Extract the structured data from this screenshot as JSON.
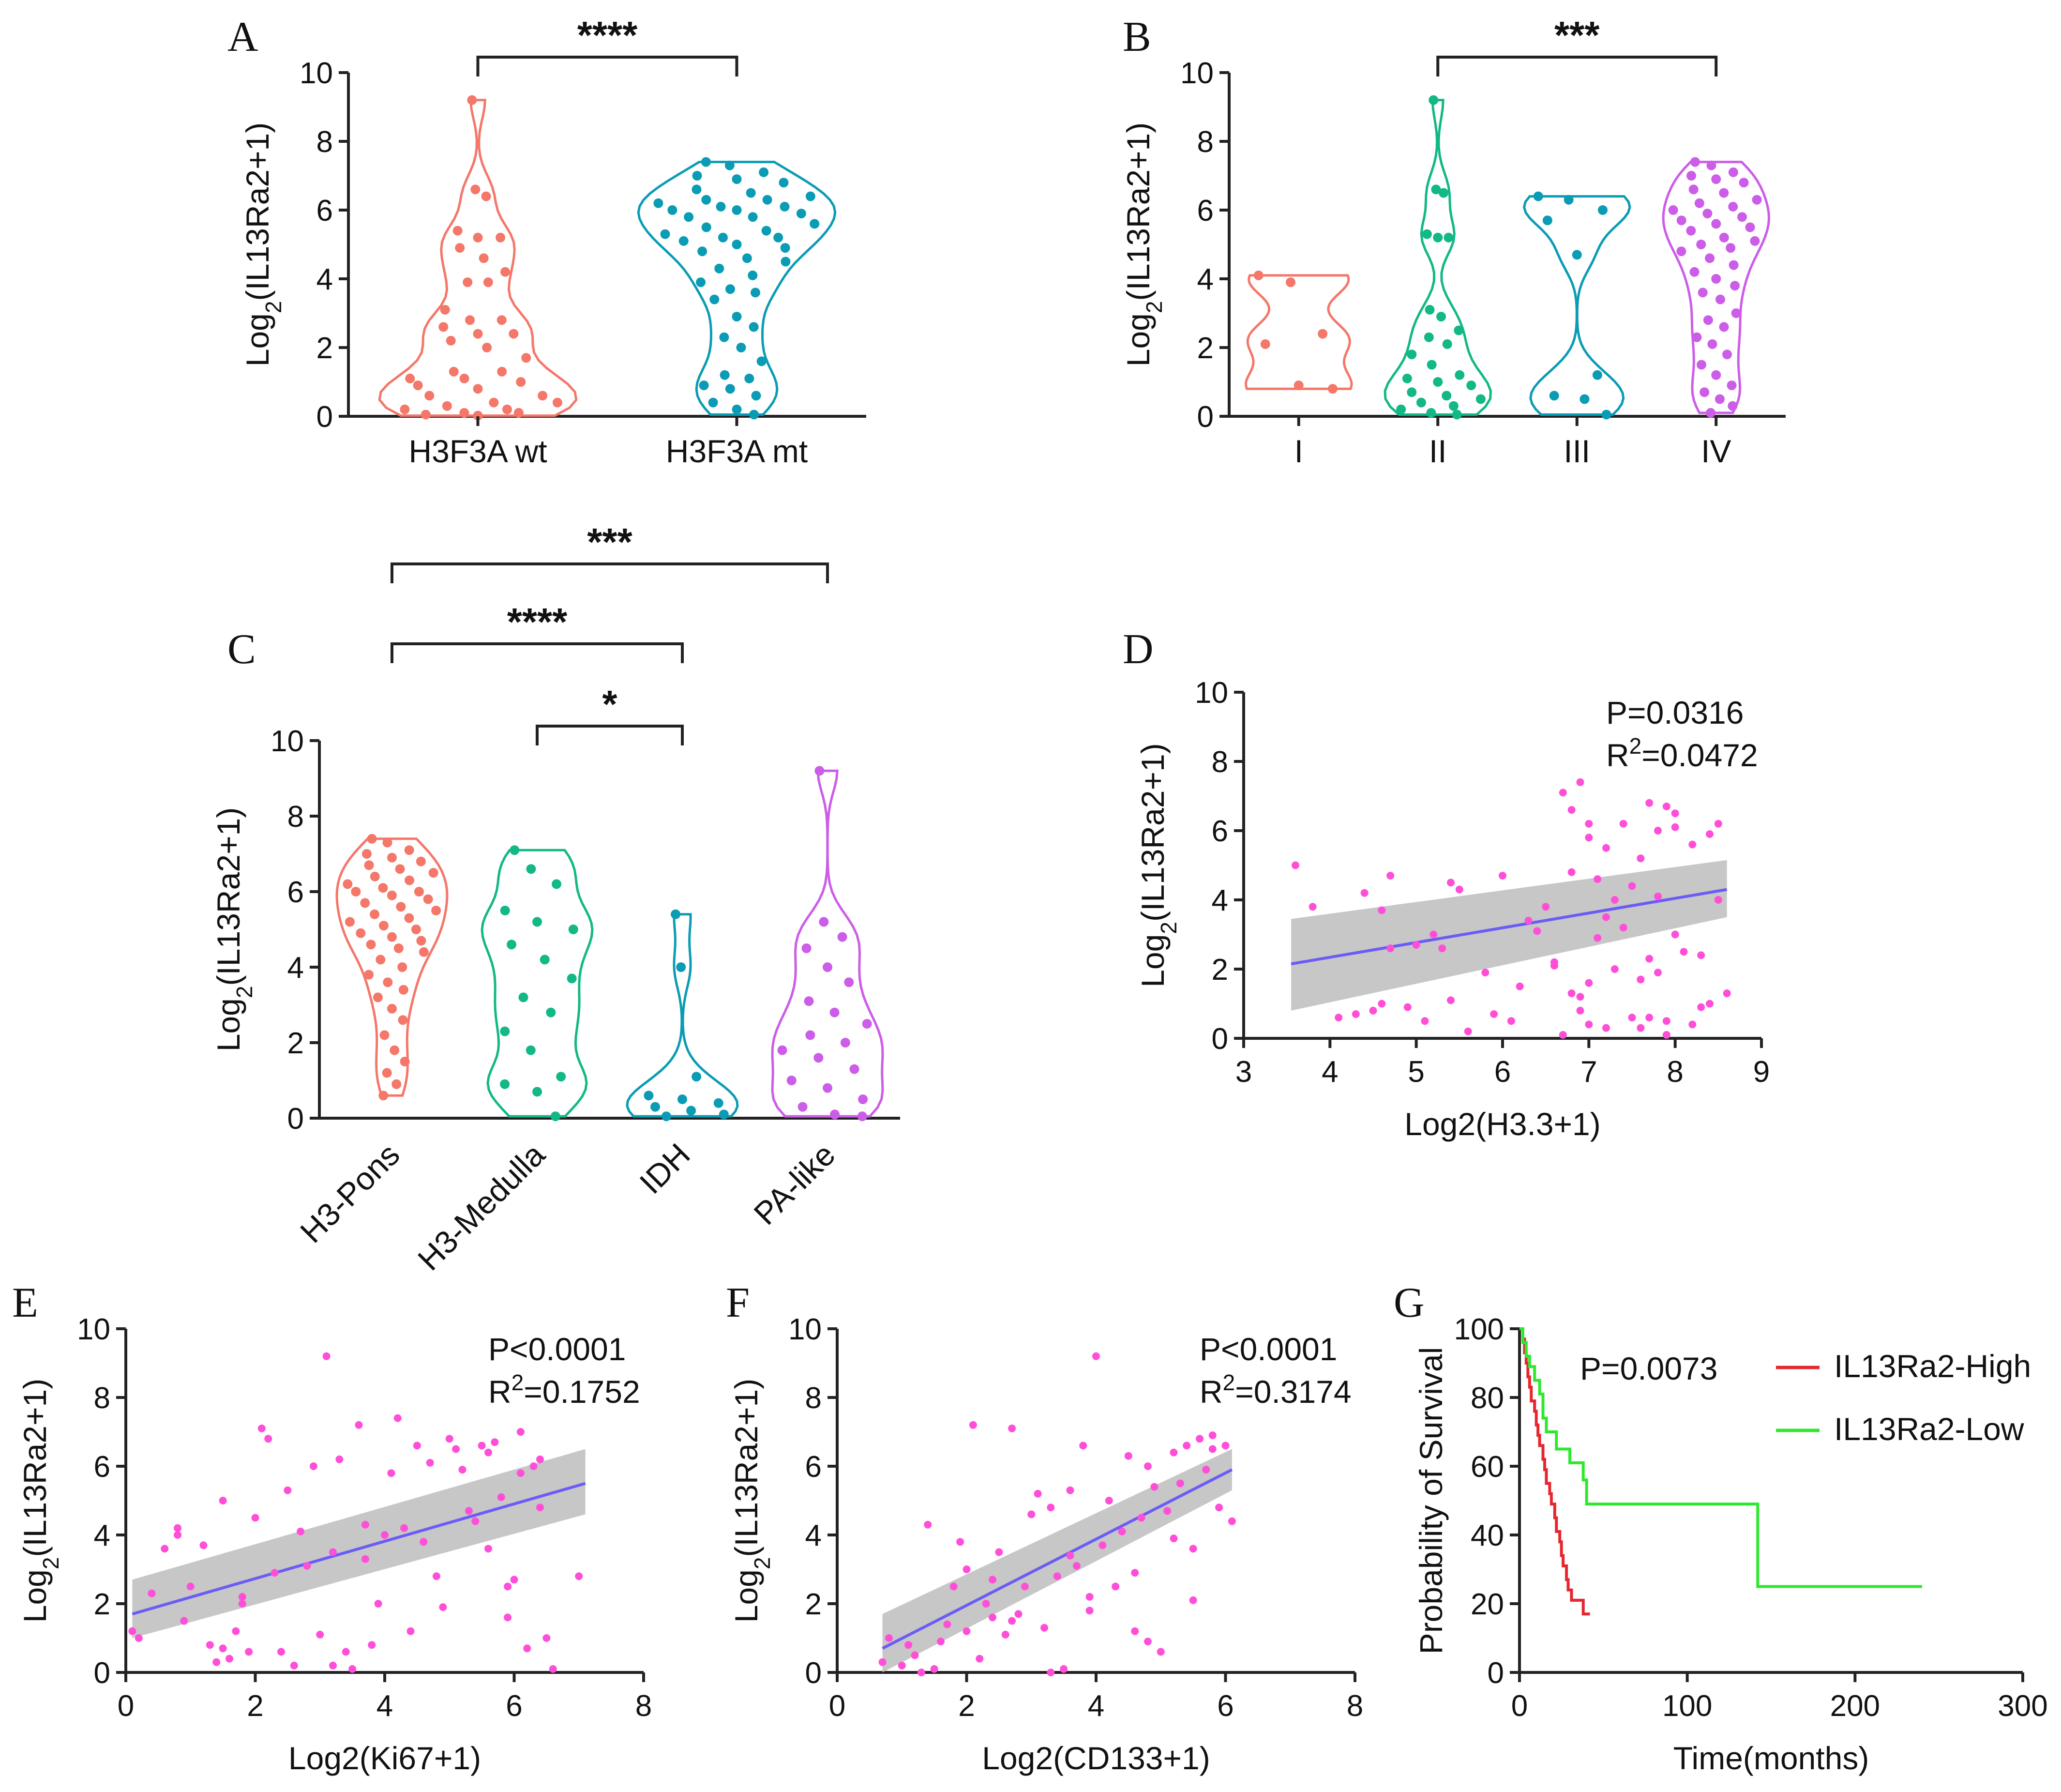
{
  "chart_data": [
    {
      "panel": "A",
      "type": "violin",
      "ylabel": "Log2(IL13Ra2+1)",
      "ylim": [
        0,
        10
      ],
      "yticks": [
        0,
        2,
        4,
        6,
        8,
        10
      ],
      "categories": [
        "H3F3A wt",
        "H3F3A mt"
      ],
      "colors": [
        "#f4776a",
        "#0a9cb4"
      ],
      "groups": [
        {
          "name": "H3F3A wt",
          "points": [
            9.2,
            6.6,
            6.4,
            5.4,
            5.2,
            5.2,
            4.9,
            4.6,
            4.2,
            3.9,
            3.9,
            3.1,
            2.8,
            2.8,
            2.6,
            2.4,
            2.4,
            2.2,
            2.0,
            1.7,
            1.3,
            1.3,
            1.1,
            1.1,
            1.0,
            0.9,
            0.8,
            0.6,
            0.6,
            0.4,
            0.4,
            0.3,
            0.2,
            0.2,
            0.1,
            0.1,
            0.05,
            0.02
          ]
        },
        {
          "name": "H3F3A mt",
          "points": [
            7.4,
            7.3,
            7.1,
            7.0,
            6.9,
            6.8,
            6.6,
            6.5,
            6.4,
            6.3,
            6.3,
            6.2,
            6.1,
            6.1,
            6.0,
            6.0,
            5.9,
            5.8,
            5.8,
            5.6,
            5.5,
            5.4,
            5.3,
            5.2,
            5.2,
            5.1,
            5.0,
            4.9,
            4.8,
            4.6,
            4.5,
            4.3,
            4.1,
            3.9,
            3.7,
            3.6,
            3.4,
            2.9,
            2.6,
            2.3,
            2.0,
            1.6,
            1.2,
            1.1,
            0.9,
            0.8,
            0.6,
            0.4,
            0.2,
            0.05
          ]
        }
      ],
      "comparisons": [
        {
          "from": "H3F3A wt",
          "to": "H3F3A mt",
          "label": "****"
        }
      ]
    },
    {
      "panel": "B",
      "type": "violin",
      "ylabel": "Log2(IL13Ra2+1)",
      "ylim": [
        0,
        10
      ],
      "yticks": [
        0,
        2,
        4,
        6,
        8,
        10
      ],
      "categories": [
        "I",
        "II",
        "III",
        "IV"
      ],
      "colors": [
        "#f4776a",
        "#12b886",
        "#0a9cb4",
        "#cc5de8"
      ],
      "groups": [
        {
          "name": "I",
          "points": [
            4.1,
            3.9,
            2.4,
            2.1,
            0.9,
            0.8
          ]
        },
        {
          "name": "II",
          "points": [
            9.2,
            6.6,
            6.5,
            5.3,
            5.2,
            5.2,
            3.1,
            2.9,
            2.5,
            2.3,
            2.1,
            1.8,
            1.5,
            1.2,
            1.1,
            1.0,
            0.9,
            0.7,
            0.6,
            0.5,
            0.4,
            0.3,
            0.2,
            0.1,
            0.05
          ]
        },
        {
          "name": "III",
          "points": [
            6.4,
            6.3,
            6.0,
            5.7,
            4.7,
            1.2,
            0.6,
            0.5,
            0.05
          ]
        },
        {
          "name": "IV",
          "points": [
            7.4,
            7.3,
            7.1,
            7.0,
            6.9,
            6.8,
            6.6,
            6.5,
            6.3,
            6.2,
            6.1,
            6.0,
            5.9,
            5.8,
            5.7,
            5.6,
            5.5,
            5.4,
            5.2,
            5.1,
            5.0,
            4.9,
            4.8,
            4.6,
            4.4,
            4.2,
            4.0,
            3.8,
            3.6,
            3.4,
            3.0,
            2.8,
            2.6,
            2.3,
            2.1,
            1.8,
            1.5,
            1.2,
            0.9,
            0.7,
            0.5,
            0.3,
            0.1
          ]
        }
      ],
      "comparisons": [
        {
          "from": "II",
          "to": "IV",
          "label": "***"
        }
      ]
    },
    {
      "panel": "C",
      "type": "violin",
      "ylabel": "Log2(IL13Ra2+1)",
      "ylim": [
        0,
        10
      ],
      "yticks": [
        0,
        2,
        4,
        6,
        8,
        10
      ],
      "categories": [
        "H3-Pons",
        "H3-Medulla",
        "IDH",
        "PA-like"
      ],
      "colors": [
        "#f4776a",
        "#12b886",
        "#0a9cb4",
        "#cc5de8"
      ],
      "groups": [
        {
          "name": "H3-Pons",
          "points": [
            7.4,
            7.3,
            7.1,
            7.0,
            6.9,
            6.8,
            6.7,
            6.6,
            6.5,
            6.4,
            6.3,
            6.2,
            6.1,
            6.0,
            6.0,
            5.9,
            5.8,
            5.7,
            5.6,
            5.5,
            5.4,
            5.3,
            5.2,
            5.1,
            5.0,
            4.9,
            4.8,
            4.7,
            4.6,
            4.5,
            4.4,
            4.2,
            4.0,
            3.8,
            3.6,
            3.4,
            3.2,
            2.9,
            2.6,
            2.2,
            1.8,
            1.5,
            1.2,
            0.9,
            0.6
          ]
        },
        {
          "name": "H3-Medulla",
          "points": [
            7.1,
            6.6,
            6.2,
            5.5,
            5.2,
            5.0,
            4.6,
            4.2,
            3.7,
            3.2,
            2.8,
            2.3,
            1.8,
            1.1,
            0.9,
            0.7,
            0.05
          ]
        },
        {
          "name": "IDH",
          "points": [
            5.4,
            4.0,
            1.1,
            0.6,
            0.5,
            0.4,
            0.3,
            0.2,
            0.1,
            0.05
          ]
        },
        {
          "name": "PA-like",
          "points": [
            9.2,
            5.2,
            4.8,
            4.5,
            4.0,
            3.6,
            3.1,
            2.8,
            2.5,
            2.2,
            2.0,
            1.8,
            1.6,
            1.3,
            1.0,
            0.8,
            0.5,
            0.3,
            0.1,
            0.05
          ]
        }
      ],
      "comparisons": [
        {
          "from": "H3-Pons",
          "to": "PA-like",
          "label": "***"
        },
        {
          "from": "H3-Pons",
          "to": "IDH",
          "label": "****"
        },
        {
          "from": "H3-Medulla",
          "to": "IDH",
          "label": "*"
        }
      ]
    },
    {
      "panel": "D",
      "type": "scatter",
      "xlabel": "Log2(H3.3+1)",
      "ylabel": "Log2(IL13Ra2+1)",
      "xlim": [
        3,
        9
      ],
      "ylim": [
        0,
        10
      ],
      "xticks": [
        3,
        4,
        5,
        6,
        7,
        8,
        9
      ],
      "yticks": [
        0,
        2,
        4,
        6,
        8,
        10
      ],
      "point_color": "#ff4fd8",
      "line_color": "#6b5cf5",
      "band_color": "#bdbdbd",
      "stat_p": "P=0.0316",
      "stat_r2_prefix": "R",
      "stat_r2_sup": "2",
      "stat_r2_value": "=0.0472",
      "fit": {
        "x": [
          3.55,
          8.6
        ],
        "y": [
          2.15,
          4.3
        ],
        "upper": [
          3.45,
          5.15
        ],
        "lower": [
          0.8,
          3.5
        ]
      },
      "x": [
        3.6,
        3.8,
        4.4,
        4.6,
        4.7,
        5.0,
        5.4,
        5.5,
        6.0,
        6.7,
        6.8,
        6.9,
        7.0,
        7.0,
        7.1,
        7.3,
        7.4,
        7.6,
        7.7,
        7.8,
        7.9,
        8.0,
        8.2,
        8.4,
        8.5,
        4.1,
        4.5,
        4.7,
        5.1,
        5.3,
        5.6,
        6.2,
        6.3,
        6.6,
        6.8,
        6.9,
        7.0,
        7.2,
        7.3,
        7.5,
        7.6,
        7.8,
        7.9,
        8.1,
        8.3,
        8.6,
        4.3,
        4.9,
        5.4,
        5.9,
        6.5,
        6.7,
        6.9,
        7.1,
        7.2,
        7.4,
        7.6,
        7.7,
        7.9,
        8.0,
        8.2,
        8.4,
        4.6,
        5.2,
        5.8,
        6.1,
        6.4,
        6.6,
        6.8,
        7.0,
        7.2,
        7.5,
        7.7,
        7.8,
        8.0,
        8.3,
        8.5
      ],
      "y": [
        5.0,
        3.8,
        4.2,
        1.0,
        4.7,
        2.7,
        4.5,
        4.3,
        4.7,
        7.1,
        6.6,
        7.4,
        6.2,
        5.8,
        4.6,
        4.0,
        6.2,
        5.2,
        6.8,
        6.0,
        6.7,
        6.5,
        5.6,
        5.9,
        6.2,
        0.6,
        0.8,
        2.6,
        0.5,
        2.6,
        0.2,
        1.5,
        3.4,
        2.2,
        1.3,
        1.2,
        0.4,
        3.5,
        2.0,
        0.6,
        0.3,
        1.9,
        0.5,
        2.5,
        0.9,
        1.3,
        0.7,
        0.9,
        1.1,
        0.7,
        3.8,
        0.1,
        0.8,
        2.9,
        0.3,
        3.2,
        1.7,
        0.6,
        0.1,
        3.0,
        0.4,
        1.0,
        3.7,
        3.0,
        1.9,
        0.5,
        3.1,
        2.1,
        4.8,
        1.6,
        5.5,
        4.4,
        2.3,
        4.1,
        6.1,
        2.4,
        4.0
      ]
    },
    {
      "panel": "E",
      "type": "scatter",
      "xlabel": "Log2(Ki67+1)",
      "ylabel": "Log2(IL13Ra2+1)",
      "xlim": [
        0,
        8
      ],
      "ylim": [
        0,
        10
      ],
      "xticks": [
        0,
        2,
        4,
        6,
        8
      ],
      "yticks": [
        0,
        2,
        4,
        6,
        8,
        10
      ],
      "point_color": "#ff4fd8",
      "line_color": "#6b5cf5",
      "band_color": "#bdbdbd",
      "stat_p": "P<0.0001",
      "stat_r2_prefix": "R",
      "stat_r2_sup": "2",
      "stat_r2_value": "=0.1752",
      "fit": {
        "x": [
          0.1,
          7.1
        ],
        "y": [
          1.7,
          5.5
        ],
        "upper": [
          2.7,
          6.5
        ],
        "lower": [
          1.0,
          4.6
        ]
      },
      "x": [
        0.1,
        0.2,
        0.4,
        0.6,
        0.8,
        0.9,
        1.0,
        1.2,
        1.3,
        1.4,
        1.5,
        1.6,
        1.7,
        1.8,
        1.9,
        2.0,
        2.1,
        2.2,
        2.3,
        2.5,
        2.6,
        2.7,
        2.8,
        3.0,
        3.1,
        3.2,
        3.3,
        3.4,
        3.5,
        3.6,
        3.7,
        3.8,
        3.9,
        4.0,
        4.1,
        4.2,
        4.3,
        4.5,
        4.6,
        4.7,
        4.8,
        5.0,
        5.1,
        5.2,
        5.3,
        5.4,
        5.5,
        5.6,
        5.7,
        5.8,
        5.9,
        6.0,
        6.1,
        6.2,
        6.3,
        6.4,
        6.5,
        6.6,
        7.0,
        1.5,
        2.4,
        3.2,
        4.4,
        5.6,
        6.1,
        0.8,
        1.8,
        2.9,
        3.7,
        4.9,
        5.9,
        6.4
      ],
      "y": [
        1.2,
        1.0,
        2.3,
        3.6,
        4.0,
        1.5,
        2.5,
        3.7,
        0.8,
        0.3,
        5.0,
        0.4,
        1.2,
        2.2,
        0.6,
        4.5,
        7.1,
        6.8,
        2.9,
        5.3,
        0.2,
        4.1,
        3.1,
        1.1,
        9.2,
        3.5,
        6.2,
        0.6,
        0.1,
        7.2,
        3.3,
        0.8,
        2.0,
        4.0,
        5.8,
        7.4,
        4.2,
        6.6,
        3.8,
        6.1,
        2.8,
        6.8,
        6.5,
        5.9,
        4.7,
        4.4,
        6.6,
        3.6,
        6.7,
        5.1,
        1.6,
        2.7,
        5.8,
        0.7,
        6.0,
        6.2,
        1.0,
        0.1,
        2.8,
        0.7,
        0.6,
        0.2,
        1.2,
        6.4,
        7.0,
        4.2,
        2.0,
        6.0,
        4.3,
        1.9,
        2.5,
        4.8
      ]
    },
    {
      "panel": "F",
      "type": "scatter",
      "xlabel": "Log2(CD133+1)",
      "ylabel": "Log2(IL13Ra2+1)",
      "xlim": [
        0,
        8
      ],
      "ylim": [
        0,
        10
      ],
      "xticks": [
        0,
        2,
        4,
        6,
        8
      ],
      "yticks": [
        0,
        2,
        4,
        6,
        8,
        10
      ],
      "point_color": "#ff4fd8",
      "line_color": "#6b5cf5",
      "band_color": "#bdbdbd",
      "stat_p": "P<0.0001",
      "stat_r2_prefix": "R",
      "stat_r2_sup": "2",
      "stat_r2_value": "=0.3174",
      "fit": {
        "x": [
          0.7,
          6.1
        ],
        "y": [
          0.7,
          5.9
        ],
        "upper": [
          1.7,
          6.5
        ],
        "lower": [
          0.0,
          5.3
        ]
      },
      "x": [
        0.7,
        0.8,
        1.0,
        1.2,
        1.4,
        1.5,
        1.6,
        1.7,
        1.8,
        1.9,
        2.0,
        2.1,
        2.2,
        2.3,
        2.4,
        2.5,
        2.6,
        2.7,
        2.8,
        2.9,
        3.0,
        3.1,
        3.2,
        3.3,
        3.4,
        3.5,
        3.6,
        3.7,
        3.8,
        3.9,
        4.0,
        4.1,
        4.2,
        4.3,
        4.4,
        4.5,
        4.6,
        4.7,
        4.8,
        4.9,
        5.0,
        5.1,
        5.2,
        5.3,
        5.4,
        5.5,
        5.6,
        5.7,
        5.8,
        5.9,
        6.0,
        6.1,
        1.3,
        2.0,
        2.7,
        3.3,
        3.9,
        4.6,
        5.2,
        5.8,
        1.1,
        2.4,
        3.6,
        4.8,
        5.5
      ],
      "y": [
        0.3,
        1.0,
        0.2,
        0.5,
        4.3,
        0.1,
        0.9,
        1.4,
        2.5,
        3.8,
        1.2,
        7.2,
        0.4,
        2.0,
        1.6,
        3.5,
        1.1,
        7.1,
        1.7,
        2.5,
        4.6,
        5.2,
        1.3,
        4.8,
        2.8,
        0.1,
        5.3,
        3.1,
        6.6,
        1.8,
        9.2,
        3.7,
        5.0,
        2.5,
        4.1,
        6.3,
        1.2,
        4.5,
        6.0,
        5.4,
        0.6,
        4.7,
        6.4,
        5.5,
        6.6,
        3.6,
        6.8,
        5.9,
        6.5,
        4.8,
        6.6,
        4.4,
        0.0,
        3.0,
        1.5,
        0.0,
        2.2,
        2.9,
        3.9,
        6.9,
        0.8,
        2.7,
        3.4,
        0.9,
        2.1
      ]
    },
    {
      "panel": "G",
      "type": "line",
      "xlabel": "Time(months)",
      "ylabel": "Probability of Survival",
      "xlim": [
        0,
        300
      ],
      "ylim": [
        0,
        100
      ],
      "xticks": [
        0,
        100,
        200,
        300
      ],
      "yticks": [
        0,
        20,
        40,
        60,
        80,
        100
      ],
      "stat_p": "P=0.0073",
      "series": [
        {
          "name": "IL13Ra2-High",
          "color": "#e5262e",
          "steps": [
            [
              0,
              100
            ],
            [
              2,
              97
            ],
            [
              3,
              93
            ],
            [
              4,
              90
            ],
            [
              5,
              86
            ],
            [
              6,
              83
            ],
            [
              7,
              79
            ],
            [
              9,
              76
            ],
            [
              10,
              72
            ],
            [
              11,
              69
            ],
            [
              12,
              66
            ],
            [
              14,
              62
            ],
            [
              15,
              59
            ],
            [
              16,
              55
            ],
            [
              18,
              52
            ],
            [
              19,
              49
            ],
            [
              21,
              45
            ],
            [
              22,
              41
            ],
            [
              24,
              38
            ],
            [
              25,
              34
            ],
            [
              26,
              31
            ],
            [
              28,
              27
            ],
            [
              29,
              24
            ],
            [
              31,
              21
            ],
            [
              38,
              17
            ],
            [
              42,
              17
            ]
          ]
        },
        {
          "name": "IL13Ra2-Low",
          "color": "#2ee82e",
          "steps": [
            [
              0,
              100
            ],
            [
              2,
              96
            ],
            [
              4,
              92
            ],
            [
              6,
              89
            ],
            [
              9,
              85
            ],
            [
              12,
              81
            ],
            [
              14,
              74
            ],
            [
              16,
              70
            ],
            [
              22,
              65
            ],
            [
              30,
              61
            ],
            [
              38,
              56
            ],
            [
              40,
              49
            ],
            [
              140,
              49
            ],
            [
              142,
              25
            ],
            [
              240,
              25
            ]
          ]
        }
      ]
    }
  ]
}
